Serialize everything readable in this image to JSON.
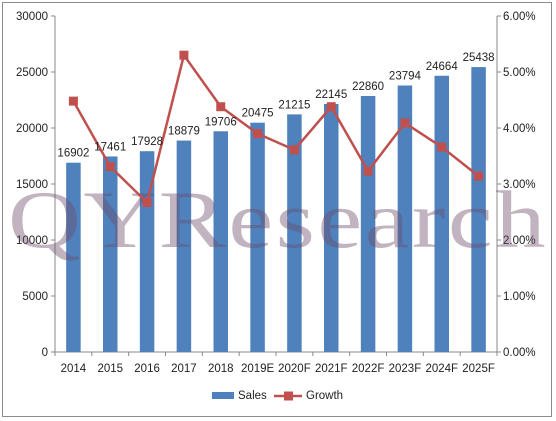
{
  "watermark": "QYResearch",
  "chart_data": {
    "type": "bar",
    "categories": [
      "2014",
      "2015",
      "2016",
      "2017",
      "2018",
      "2019E",
      "2020F",
      "2021F",
      "2022F",
      "2023F",
      "2024F",
      "2025F"
    ],
    "series": [
      {
        "name": "Sales",
        "type": "bar",
        "axis": "left",
        "color": "#4f81bd",
        "values": [
          16902,
          17461,
          17928,
          18879,
          19706,
          20475,
          21215,
          22145,
          22860,
          23794,
          24664,
          25438
        ]
      },
      {
        "name": "Growth",
        "type": "line",
        "axis": "right",
        "color": "#c0504d",
        "values": [
          0.0448,
          0.0331,
          0.0267,
          0.053,
          0.0438,
          0.039,
          0.0361,
          0.0438,
          0.0323,
          0.0409,
          0.0366,
          0.0314
        ]
      }
    ],
    "data_labels": [
      "16902",
      "17461",
      "17928",
      "18879",
      "19706",
      "20475",
      "21215",
      "22145",
      "22860",
      "23794",
      "24664",
      "25438"
    ],
    "y_left": {
      "min": 0,
      "max": 30000,
      "ticks": [
        "0",
        "5000",
        "10000",
        "15000",
        "20000",
        "25000",
        "30000"
      ]
    },
    "y_right": {
      "min": 0,
      "max": 0.06,
      "ticks": [
        "0.00%",
        "1.00%",
        "2.00%",
        "3.00%",
        "4.00%",
        "5.00%",
        "6.00%"
      ]
    },
    "legend": {
      "position": "bottom",
      "items": [
        "Sales",
        "Growth"
      ]
    },
    "grid": false
  }
}
